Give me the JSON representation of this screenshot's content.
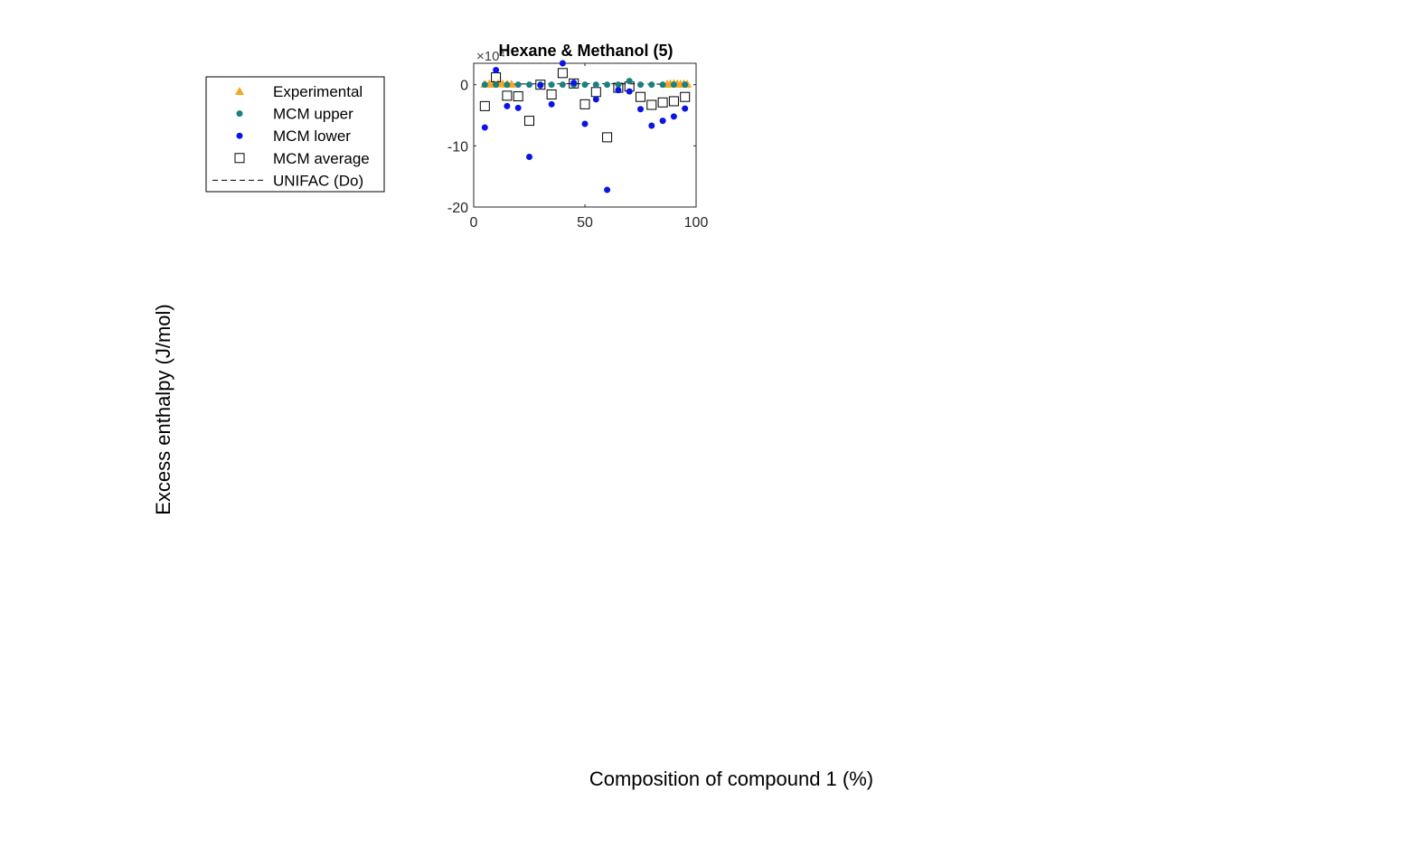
{
  "figure": {
    "ylabel": "Excess enthalpy (J/mol)",
    "xlabel": "Composition of compound 1 (%)"
  },
  "legend": {
    "items": [
      {
        "label": "Experimental",
        "marker": "triangle",
        "color": "#f5a623"
      },
      {
        "label": "MCM upper",
        "marker": "dot",
        "color": "#1a8080"
      },
      {
        "label": "MCM lower",
        "marker": "dot",
        "color": "#0a14e6"
      },
      {
        "label": "MCM average",
        "marker": "square",
        "color": "#000000"
      },
      {
        "label": "UNIFAC (Do)",
        "marker": "dashed-line",
        "color": "#000000"
      }
    ]
  },
  "chart_data": {
    "type": "scatter",
    "title": "Hexane & Methanol (5)",
    "exponent_label": "×10⁴",
    "xlim": [
      0,
      100
    ],
    "ylim": [
      -20,
      3.5
    ],
    "xticks": [
      "0",
      "50",
      "100"
    ],
    "yticks": [
      "0",
      "-10",
      "-20"
    ],
    "xtick_values": [
      0,
      50,
      100
    ],
    "ytick_values": [
      0,
      -10,
      -20
    ],
    "series": [
      {
        "name": "Experimental",
        "marker": "triangle",
        "color": "#f5a623",
        "x": [
          5,
          7,
          9,
          11,
          13,
          15,
          17,
          87,
          88.5,
          90,
          91.5,
          93,
          94.5,
          96
        ],
        "y": [
          0.1,
          0.15,
          0.1,
          0.2,
          0.15,
          0.1,
          0.1,
          0.1,
          0.15,
          0.2,
          0.15,
          0.1,
          0.15,
          0.1
        ]
      },
      {
        "name": "MCM upper",
        "marker": "dot",
        "color": "#1a8080",
        "x": [
          5,
          10,
          15,
          20,
          25,
          30,
          35,
          40,
          45,
          50,
          55,
          60,
          65,
          70,
          75,
          80,
          85,
          90,
          95
        ],
        "y": [
          0,
          0,
          0,
          0,
          0,
          0,
          0,
          0,
          0,
          0,
          0,
          0,
          0,
          0.6,
          0,
          0,
          0,
          0,
          0
        ]
      },
      {
        "name": "MCM lower",
        "marker": "dot",
        "color": "#0a14e6",
        "x": [
          5,
          10,
          15,
          20,
          25,
          30,
          35,
          40,
          45,
          50,
          55,
          60,
          65,
          70,
          75,
          80,
          85,
          90,
          95
        ],
        "y": [
          -7,
          2.4,
          -3.5,
          -3.8,
          -11.8,
          -0.1,
          -3.2,
          3.5,
          0.3,
          -6.4,
          -2.4,
          -17.2,
          -0.9,
          -1.1,
          -4,
          -6.7,
          -5.9,
          -5.2,
          -3.9
        ]
      },
      {
        "name": "MCM average",
        "marker": "square",
        "color": "#000000",
        "x": [
          5,
          10,
          15,
          20,
          25,
          30,
          35,
          40,
          45,
          50,
          55,
          60,
          65,
          70,
          75,
          80,
          85,
          90,
          95
        ],
        "y": [
          -3.5,
          1.2,
          -1.8,
          -1.9,
          -5.9,
          0,
          -1.6,
          1.9,
          0.2,
          -3.2,
          -1.2,
          -8.6,
          -0.5,
          -0.3,
          -2,
          -3.3,
          -2.9,
          -2.7,
          -2
        ]
      },
      {
        "name": "UNIFAC (Do)",
        "marker": "dashed-line",
        "color": "#000000",
        "x": [
          5,
          20,
          40,
          60,
          80,
          95
        ],
        "y": [
          0.05,
          0.12,
          0.15,
          0.15,
          0.12,
          0.05
        ]
      }
    ]
  }
}
